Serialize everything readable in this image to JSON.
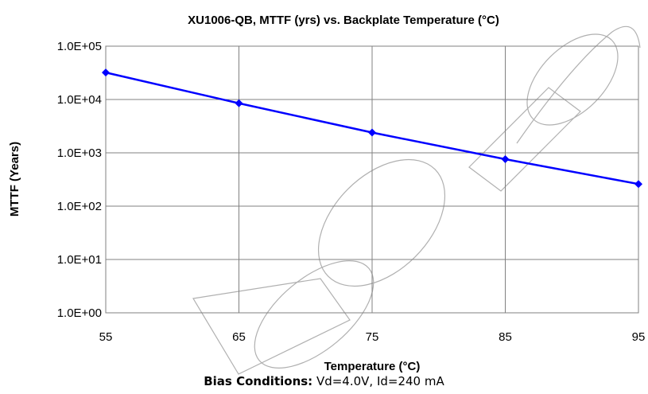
{
  "chart_data": {
    "type": "line",
    "title": "XU1006-QB, MTTF (yrs) vs. Backplate Temperature (°C)",
    "xlabel": "Temperature (°C)",
    "ylabel": "MTTF (Years)",
    "x_ticks": [
      "55",
      "65",
      "75",
      "85",
      "95"
    ],
    "y_ticks": [
      "1.0E+00",
      "1.0E+01",
      "1.0E+02",
      "1.0E+03",
      "1.0E+04",
      "1.0E+05"
    ],
    "xlim": [
      55,
      95
    ],
    "ylim": [
      1,
      100000
    ],
    "y_scale": "log",
    "grid": true,
    "series": [
      {
        "color": "#0000ff",
        "x": [
          55,
          65,
          75,
          85,
          95
        ],
        "y": [
          32000,
          8500,
          2400,
          760,
          260
        ]
      }
    ]
  },
  "footer": {
    "bias_label": "Bias Conditions:",
    "bias_value": " Vd=4.0V, Id=240 mA"
  }
}
